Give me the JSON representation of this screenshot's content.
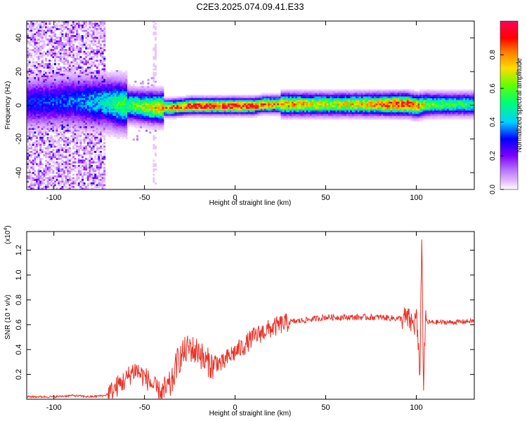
{
  "title": "C2E3.2025.074.09.41.E33",
  "colors": {
    "snr_line": "#e83228",
    "colormap": [
      "#ffffff",
      "#e4b9ff",
      "#7d00ff",
      "#0000ff",
      "#00d2ff",
      "#00ff6e",
      "#c8ff00",
      "#ffdc00",
      "#ff4b00",
      "#ff005a"
    ]
  },
  "chart_data": [
    {
      "id": "spectrogram",
      "type": "heatmap",
      "xlabel": "Height of straight line (km)",
      "ylabel": "Frequency (Hz)",
      "xlim": [
        -115,
        132
      ],
      "ylim": [
        -50,
        50
      ],
      "xticks": [
        -100,
        -50,
        0,
        50,
        100
      ],
      "yticks": [
        -40,
        -20,
        0,
        20,
        40
      ],
      "colorbar": {
        "label": "Normalized spectral amplitude",
        "range": [
          0,
          1
        ],
        "ticks": [
          "0.0",
          "0.2",
          "0.4",
          "0.6",
          "0.8"
        ]
      },
      "ridge": {
        "x": [
          -115,
          -90,
          -72,
          -65,
          -55,
          -45,
          -35,
          -25,
          -10,
          0,
          10,
          15,
          30,
          50,
          70,
          85,
          95,
          100,
          105,
          120,
          132
        ],
        "center_freq": [
          2,
          3,
          2,
          1,
          0,
          -1,
          -1,
          0,
          0,
          0,
          0,
          1,
          1,
          1,
          1,
          1,
          1,
          0,
          1,
          1,
          1
        ],
        "peak_amplitude": [
          0.3,
          0.35,
          0.45,
          0.55,
          0.6,
          0.75,
          0.85,
          0.95,
          0.95,
          0.95,
          0.92,
          0.85,
          0.8,
          0.7,
          0.75,
          0.88,
          0.95,
          0.85,
          0.65,
          0.55,
          0.55
        ]
      }
    },
    {
      "id": "snr",
      "type": "line",
      "xlabel": "Height of straight line (km)",
      "ylabel": "SNR (10 * v/v)",
      "y_multiplier": "(x10^4)",
      "xlim": [
        -115,
        132
      ],
      "ylim": [
        0,
        1.35
      ],
      "xticks": [
        -100,
        -50,
        0,
        50,
        100
      ],
      "yticks": [
        "0.2",
        "0.4",
        "0.6",
        "0.8",
        "1.0",
        "1.2"
      ],
      "series": [
        {
          "x": [
            -115,
            -100,
            -90,
            -80,
            -72,
            -68,
            -64,
            -60,
            -57,
            -55,
            -52,
            -50,
            -47,
            -45,
            -42,
            -40,
            -38,
            -35,
            -32,
            -30,
            -28,
            -25,
            -22,
            -20,
            -17,
            -15,
            -12,
            -10,
            -7,
            -5,
            -2,
            0,
            5,
            10,
            15,
            20,
            25,
            30,
            40,
            50,
            60,
            70,
            80,
            90,
            95,
            97,
            99,
            100,
            101,
            102,
            103,
            104,
            105,
            110,
            120,
            132
          ],
          "y": [
            0.02,
            0.02,
            0.03,
            0.02,
            0.03,
            0.06,
            0.12,
            0.16,
            0.22,
            0.24,
            0.2,
            0.18,
            0.14,
            0.1,
            0.06,
            0.05,
            0.08,
            0.12,
            0.3,
            0.34,
            0.38,
            0.42,
            0.38,
            0.4,
            0.3,
            0.3,
            0.26,
            0.3,
            0.28,
            0.32,
            0.36,
            0.38,
            0.43,
            0.5,
            0.54,
            0.57,
            0.6,
            0.62,
            0.64,
            0.66,
            0.66,
            0.66,
            0.66,
            0.65,
            0.65,
            0.62,
            0.6,
            0.7,
            0.4,
            0.22,
            1.32,
            0.1,
            0.62,
            0.62,
            0.62,
            0.63
          ]
        }
      ]
    }
  ]
}
